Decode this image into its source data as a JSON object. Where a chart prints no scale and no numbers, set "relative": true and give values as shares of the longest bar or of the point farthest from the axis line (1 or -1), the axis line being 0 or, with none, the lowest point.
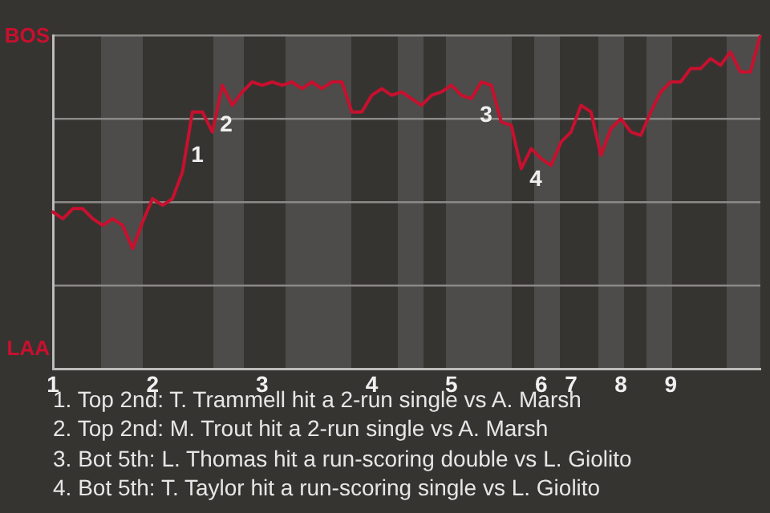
{
  "chart_data": {
    "type": "line",
    "relative": true,
    "categories": [
      "1",
      null,
      null,
      null,
      null,
      null,
      null,
      null,
      null,
      null,
      "2",
      null,
      null,
      null,
      null,
      null,
      null,
      null,
      null,
      null,
      null,
      "3",
      null,
      null,
      null,
      null,
      null,
      null,
      null,
      null,
      null,
      null,
      "4",
      null,
      null,
      null,
      null,
      null,
      null,
      null,
      "5",
      null,
      null,
      null,
      null,
      null,
      null,
      null,
      null,
      "6",
      null,
      null,
      "7",
      null,
      null,
      null,
      null,
      "8",
      null,
      null,
      null,
      null,
      "9",
      null,
      null,
      null,
      null,
      null,
      null,
      null,
      null,
      null
    ],
    "grid": "y",
    "legend": false,
    "marker": "none",
    "line_style": "solid",
    "series": [
      {
        "color": "#c8102e",
        "values": [
          0.47,
          0.45,
          0.48,
          0.48,
          0.45,
          0.43,
          0.45,
          0.43,
          0.36,
          0.44,
          0.51,
          0.49,
          0.51,
          0.59,
          0.77,
          0.77,
          0.71,
          0.85,
          0.79,
          0.83,
          0.86,
          0.85,
          0.86,
          0.85,
          0.86,
          0.84,
          0.86,
          0.84,
          0.86,
          0.86,
          0.77,
          0.77,
          0.82,
          0.84,
          0.82,
          0.83,
          0.81,
          0.79,
          0.82,
          0.83,
          0.85,
          0.82,
          0.81,
          0.86,
          0.85,
          0.74,
          0.73,
          0.6,
          0.66,
          0.63,
          0.61,
          0.68,
          0.71,
          0.79,
          0.77,
          0.64,
          0.72,
          0.75,
          0.71,
          0.7,
          0.77,
          0.83,
          0.86,
          0.86,
          0.9,
          0.9,
          0.93,
          0.91,
          0.95,
          0.89,
          0.89,
          1
        ]
      }
    ],
    "annotations": [
      "BOS",
      "LAA",
      "1",
      "2",
      "3",
      "4",
      "1. Top 2nd: T. Trammell hit a 2-run single vs A. Marsh",
      "2. Top 2nd: M. Trout hit a 2-run single vs A. Marsh",
      "3. Bot 5th: L. Thomas hit a run-scoring double vs L. Giolito",
      "4. Bot 5th: T. Taylor hit a run-scoring single vs L. Giolito"
    ]
  }
}
